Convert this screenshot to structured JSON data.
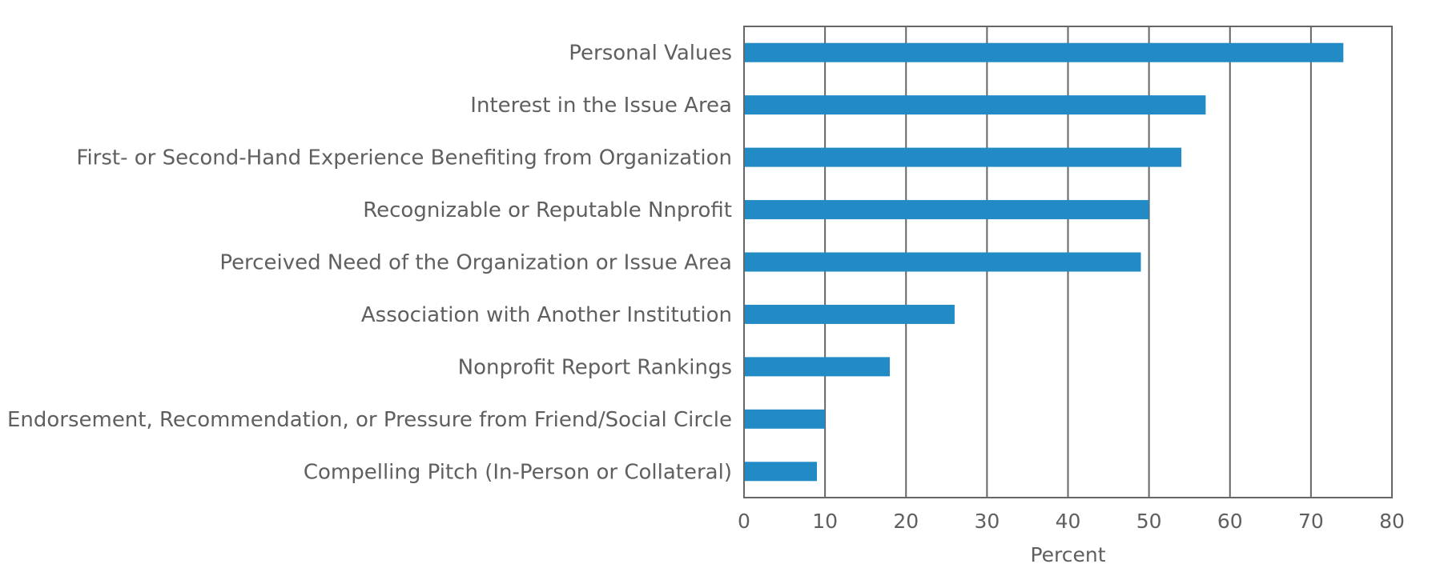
{
  "chart_data": {
    "type": "bar",
    "orientation": "horizontal",
    "categories": [
      "Personal Values",
      "Interest in the Issue Area",
      "First- or Second-Hand Experience Benefiting from Organization",
      "Recognizable or Reputable Nnprofit",
      "Perceived Need of the Organization or Issue Area",
      "Association with Another Institution",
      "Nonprofit Report Rankings",
      "Endorsement, Recommendation, or Pressure from Friend/Social Circle",
      "Compelling Pitch (In-Person or Collateral)"
    ],
    "values": [
      74,
      57,
      54,
      50,
      49,
      26,
      18,
      10,
      9
    ],
    "xlabel": "Percent",
    "ylabel": "",
    "xlim": [
      0,
      80
    ],
    "xticks": [
      0,
      10,
      20,
      30,
      40,
      50,
      60,
      70,
      80
    ],
    "grid": true,
    "bar_color": "#228bc6",
    "grid_color": "#666666"
  }
}
